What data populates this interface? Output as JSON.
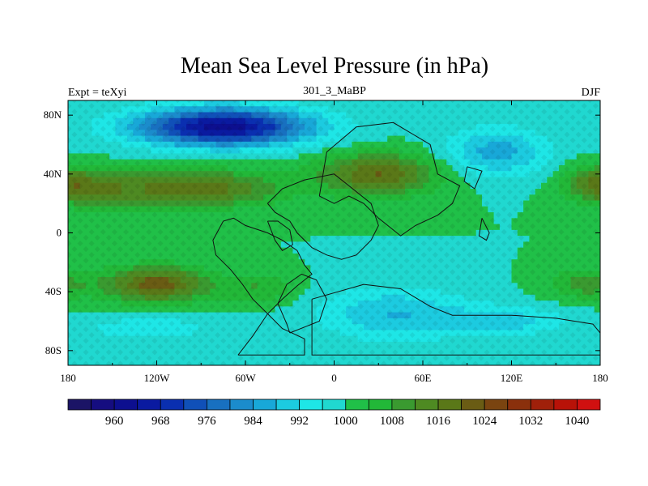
{
  "chart_data": {
    "type": "heatmap",
    "title": "Mean Sea Level Pressure (in hPa)",
    "subtitle_left": "Expt = teXyi",
    "subtitle_center": "301_3_MaBP",
    "subtitle_right": "DJF",
    "xlabel": "",
    "ylabel": "",
    "xlim": [
      -180,
      180
    ],
    "ylim": [
      -90,
      90
    ],
    "x_ticks": [
      {
        "value": -180,
        "label": "180"
      },
      {
        "value": -120,
        "label": "120W"
      },
      {
        "value": -60,
        "label": "60W"
      },
      {
        "value": 0,
        "label": "0"
      },
      {
        "value": 60,
        "label": "60E"
      },
      {
        "value": 120,
        "label": "120E"
      },
      {
        "value": 180,
        "label": "180"
      }
    ],
    "y_ticks": [
      {
        "value": 80,
        "label": "80N"
      },
      {
        "value": 40,
        "label": "40N"
      },
      {
        "value": 0,
        "label": "0"
      },
      {
        "value": -40,
        "label": "40S"
      },
      {
        "value": -80,
        "label": "80S"
      }
    ],
    "colorbar": {
      "levels": [
        956,
        960,
        964,
        968,
        972,
        976,
        980,
        984,
        988,
        992,
        996,
        1000,
        1004,
        1008,
        1012,
        1016,
        1020,
        1024,
        1028,
        1032,
        1036,
        1040,
        1044
      ],
      "colors": [
        "#1b1466",
        "#150d80",
        "#0d0f8f",
        "#0a1aa0",
        "#0a2fb0",
        "#1050b8",
        "#1870c0",
        "#1b8ccc",
        "#18a8d8",
        "#1ccbe0",
        "#1ee6e6",
        "#20d8d0",
        "#20c048",
        "#22b838",
        "#3a9a30",
        "#4e8a22",
        "#5a7818",
        "#6a5c14",
        "#7a4410",
        "#8a300c",
        "#a0200a",
        "#b81208",
        "#d01010"
      ],
      "labels": [
        {
          "value": 960,
          "label": "960"
        },
        {
          "value": 968,
          "label": "968"
        },
        {
          "value": 976,
          "label": "976"
        },
        {
          "value": 984,
          "label": "984"
        },
        {
          "value": 992,
          "label": "992"
        },
        {
          "value": 1000,
          "label": "1000"
        },
        {
          "value": 1008,
          "label": "1008"
        },
        {
          "value": 1016,
          "label": "1016"
        },
        {
          "value": 1024,
          "label": "1024"
        },
        {
          "value": 1032,
          "label": "1032"
        },
        {
          "value": 1040,
          "label": "1040"
        }
      ]
    },
    "field_background": 1000,
    "pressure_features": [
      {
        "lon": -75,
        "lat": 72,
        "value": 962,
        "lon_radius": 60,
        "lat_radius": 13
      },
      {
        "lon": 110,
        "lat": 55,
        "value": 986,
        "lon_radius": 35,
        "lat_radius": 16
      },
      {
        "lon": 40,
        "lat": -55,
        "value": 988,
        "lon_radius": 50,
        "lat_radius": 18
      },
      {
        "lon": 115,
        "lat": -60,
        "value": 990,
        "lon_radius": 40,
        "lat_radius": 10
      },
      {
        "lon": -125,
        "lat": -65,
        "value": 992,
        "lon_radius": 40,
        "lat_radius": 8
      },
      {
        "lon": -95,
        "lat": 30,
        "value": 1020,
        "lon_radius": 55,
        "lat_radius": 12
      },
      {
        "lon": 30,
        "lat": 40,
        "value": 1020,
        "lon_radius": 40,
        "lat_radius": 14
      },
      {
        "lon": -120,
        "lat": -35,
        "value": 1022,
        "lon_radius": 35,
        "lat_radius": 12
      },
      {
        "lon": -165,
        "lat": 30,
        "value": 1012,
        "lon_radius": 30,
        "lat_radius": 12
      },
      {
        "lon": 175,
        "lat": 35,
        "value": 1010,
        "lon_radius": 20,
        "lat_radius": 12
      },
      {
        "lon": 170,
        "lat": -35,
        "value": 1010,
        "lon_radius": 25,
        "lat_radius": 10
      },
      {
        "lon": -50,
        "lat": -38,
        "value": 1008,
        "lon_radius": 25,
        "lat_radius": 10
      }
    ],
    "continent_outlines": [
      [
        [
          -65,
          -83
        ],
        [
          -20,
          -83
        ],
        [
          -20,
          -72
        ],
        [
          -35,
          -65
        ],
        [
          -45,
          -55
        ],
        [
          -55,
          -45
        ],
        [
          -62,
          -35
        ],
        [
          -70,
          -25
        ],
        [
          -80,
          -15
        ],
        [
          -82,
          -5
        ],
        [
          -75,
          8
        ],
        [
          -68,
          10
        ],
        [
          -60,
          5
        ],
        [
          -45,
          0
        ],
        [
          -35,
          -5
        ],
        [
          -25,
          -12
        ],
        [
          -20,
          -22
        ],
        [
          -15,
          -28
        ],
        [
          -25,
          -36
        ],
        [
          -35,
          -45
        ],
        [
          -45,
          -55
        ],
        [
          -55,
          -70
        ],
        [
          -65,
          -83
        ]
      ],
      [
        [
          -30,
          -68
        ],
        [
          -10,
          -60
        ],
        [
          -5,
          -45
        ],
        [
          -12,
          -32
        ],
        [
          -22,
          -28
        ],
        [
          -32,
          -35
        ],
        [
          -38,
          -48
        ],
        [
          -32,
          -62
        ],
        [
          -30,
          -68
        ]
      ],
      [
        [
          -45,
          8
        ],
        [
          -40,
          -5
        ],
        [
          -35,
          -12
        ],
        [
          -28,
          -8
        ],
        [
          -30,
          2
        ],
        [
          -38,
          8
        ],
        [
          -45,
          8
        ]
      ],
      [
        [
          -45,
          20
        ],
        [
          -35,
          30
        ],
        [
          -20,
          36
        ],
        [
          0,
          40
        ],
        [
          10,
          32
        ],
        [
          25,
          20
        ],
        [
          30,
          5
        ],
        [
          25,
          -5
        ],
        [
          15,
          -15
        ],
        [
          5,
          -18
        ],
        [
          -5,
          -15
        ],
        [
          -15,
          -10
        ],
        [
          -25,
          0
        ],
        [
          -30,
          8
        ],
        [
          -40,
          14
        ],
        [
          -45,
          20
        ]
      ],
      [
        [
          -10,
          25
        ],
        [
          -5,
          55
        ],
        [
          15,
          72
        ],
        [
          40,
          75
        ],
        [
          65,
          60
        ],
        [
          70,
          40
        ],
        [
          85,
          32
        ],
        [
          80,
          20
        ],
        [
          70,
          12
        ],
        [
          55,
          5
        ],
        [
          45,
          -2
        ],
        [
          30,
          10
        ],
        [
          20,
          20
        ],
        [
          10,
          25
        ],
        [
          0,
          20
        ],
        [
          -10,
          25
        ]
      ],
      [
        [
          100,
          10
        ],
        [
          105,
          0
        ],
        [
          103,
          -5
        ],
        [
          98,
          -2
        ],
        [
          100,
          10
        ]
      ],
      [
        [
          -15,
          -45
        ],
        [
          20,
          -35
        ],
        [
          45,
          -38
        ],
        [
          65,
          -50
        ],
        [
          80,
          -56
        ],
        [
          120,
          -56
        ],
        [
          150,
          -58
        ],
        [
          175,
          -62
        ],
        [
          180,
          -68
        ],
        [
          180,
          -83
        ],
        [
          -15,
          -83
        ],
        [
          -15,
          -45
        ]
      ],
      [
        [
          90,
          45
        ],
        [
          100,
          42
        ],
        [
          95,
          30
        ],
        [
          88,
          35
        ],
        [
          90,
          45
        ]
      ]
    ]
  }
}
